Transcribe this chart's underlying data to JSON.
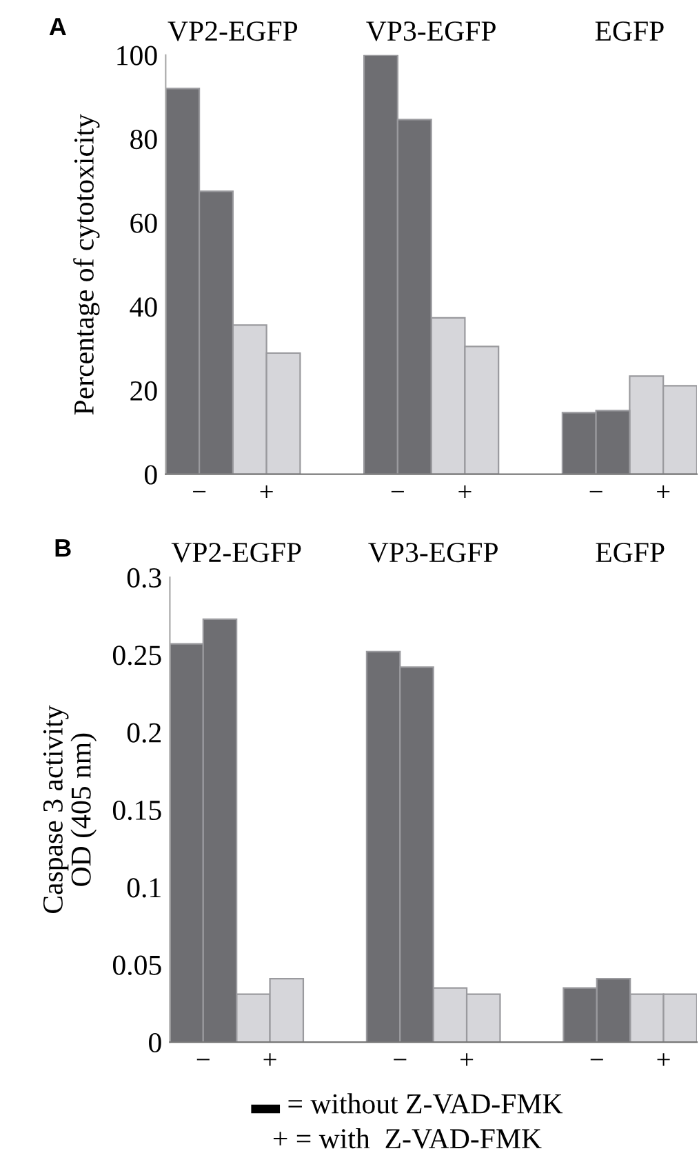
{
  "chart_data": [
    {
      "type": "bar",
      "title": "A",
      "ylabel": "Percentage of cytotoxicity",
      "categories": [
        "−",
        "+",
        "−",
        "+",
        "−",
        "+"
      ],
      "series": [
        {
          "colors": [
            "#6e6e72",
            "#d6d6da",
            "#6e6e72",
            "#d6d6da",
            "#6e6e72",
            "#d6d6da"
          ],
          "values": [
            92,
            35.6,
            100,
            37.3,
            14.7,
            23.4
          ]
        },
        {
          "colors": [
            "#6e6e72",
            "#d6d6da",
            "#6e6e72",
            "#d6d6da",
            "#6e6e72",
            "#d6d6da"
          ],
          "values": [
            67.5,
            28.9,
            84.6,
            30.5,
            15.2,
            21.1
          ]
        }
      ],
      "ylim": [
        0,
        100
      ],
      "yticks": [
        0,
        20,
        40,
        60,
        80,
        100
      ],
      "grid": false,
      "legend": false,
      "annotations": [
        "VP2-EGFP",
        "VP3-EGFP",
        "EGFP"
      ]
    },
    {
      "type": "bar",
      "title": "B",
      "ylabel": "Caspase 3 activity\nOD (405 nm)",
      "categories": [
        "−",
        "+",
        "−",
        "+",
        "−",
        "+"
      ],
      "series": [
        {
          "colors": [
            "#6e6e72",
            "#d6d6da",
            "#6e6e72",
            "#d6d6da",
            "#6e6e72",
            "#d6d6da"
          ],
          "values": [
            0.257,
            0.031,
            0.252,
            0.035,
            0.035,
            0.031
          ]
        },
        {
          "colors": [
            "#6e6e72",
            "#d6d6da",
            "#6e6e72",
            "#d6d6da",
            "#6e6e72",
            "#d6d6da"
          ],
          "values": [
            0.273,
            0.041,
            0.242,
            0.031,
            0.041,
            0.031
          ]
        }
      ],
      "ylim": [
        0,
        0.3
      ],
      "yticks": [
        0,
        0.05,
        0.1,
        0.15,
        0.2,
        0.25,
        0.3
      ],
      "grid": false,
      "legend": false,
      "annotations": [
        "VP2-EGFP",
        "VP3-EGFP",
        "EGFP",
        "▬ = without Z-VAD-FMK",
        "+ = with  Z-VAD-FMK"
      ]
    }
  ]
}
